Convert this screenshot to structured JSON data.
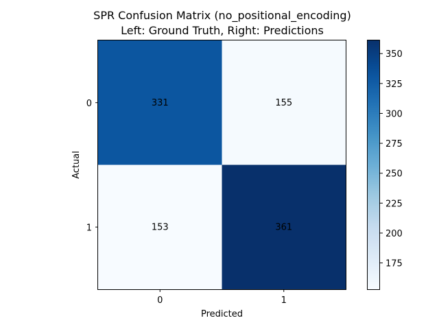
{
  "chart_data": {
    "type": "heatmap",
    "title_line1": "SPR Confusion Matrix (no_positional_encoding)",
    "title_line2": "Left: Ground Truth, Right: Predictions",
    "xlabel": "Predicted",
    "ylabel": "Actual",
    "x_categories": [
      "0",
      "1"
    ],
    "y_categories": [
      "0",
      "1"
    ],
    "values": [
      [
        331,
        155
      ],
      [
        153,
        361
      ]
    ],
    "colormap": "Blues",
    "colorbar": {
      "range": [
        153,
        361
      ],
      "ticks": [
        175,
        200,
        225,
        250,
        275,
        300,
        325,
        350
      ],
      "tick_labels": [
        "175",
        "200",
        "225",
        "250",
        "275",
        "300",
        "325",
        "350"
      ]
    }
  }
}
